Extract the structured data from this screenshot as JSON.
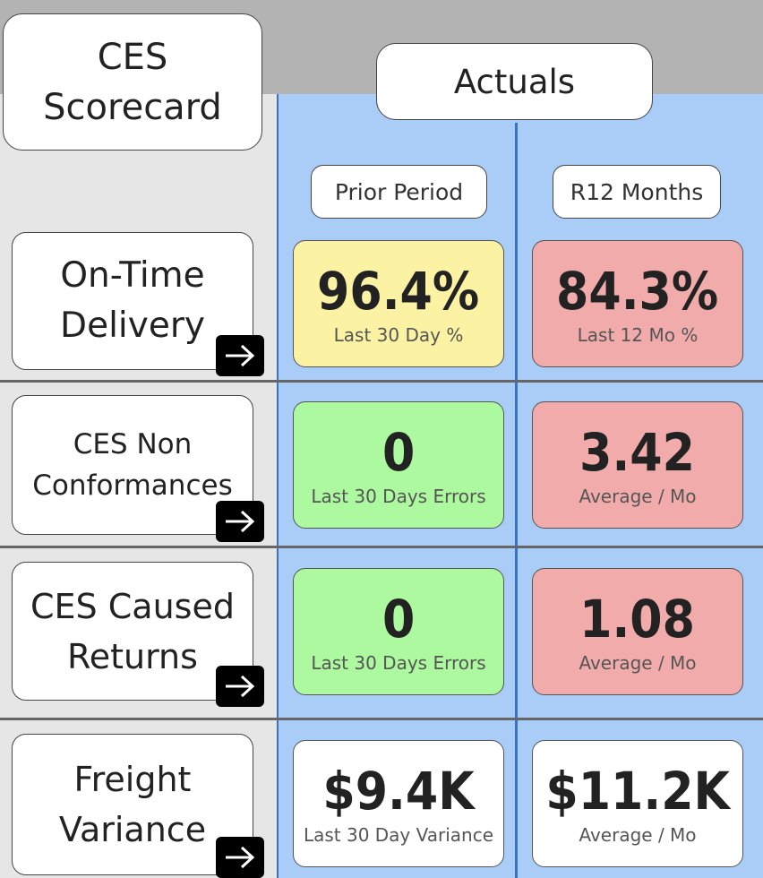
{
  "title": "CES\nScorecard",
  "group_header": "Actuals",
  "columns": [
    "Prior Period",
    "R12 Months"
  ],
  "colors": {
    "yellow": "#fbf3a3",
    "red": "#f2abab",
    "green": "#adf9a0",
    "white": "#ffffff",
    "blue_panel": "#a9cdf7"
  },
  "rows": [
    {
      "label": "On-Time\nDelivery",
      "prior": {
        "value": "96.4%",
        "caption": "Last 30 Day %",
        "status": "yellow"
      },
      "r12": {
        "value": "84.3%",
        "caption": "Last 12 Mo %",
        "status": "red"
      }
    },
    {
      "label": "CES Non\nConformances",
      "prior": {
        "value": "0",
        "caption": "Last 30 Days Errors",
        "status": "green"
      },
      "r12": {
        "value": "3.42",
        "caption": "Average / Mo",
        "status": "red"
      }
    },
    {
      "label": "CES Caused\nReturns",
      "prior": {
        "value": "0",
        "caption": "Last 30 Days Errors",
        "status": "green"
      },
      "r12": {
        "value": "1.08",
        "caption": "Average / Mo",
        "status": "red"
      }
    },
    {
      "label": "Freight\nVariance",
      "prior": {
        "value": "$9.4K",
        "caption": "Last 30 Day Variance",
        "status": "white"
      },
      "r12": {
        "value": "$11.2K",
        "caption": "Average / Mo",
        "status": "white"
      }
    }
  ]
}
